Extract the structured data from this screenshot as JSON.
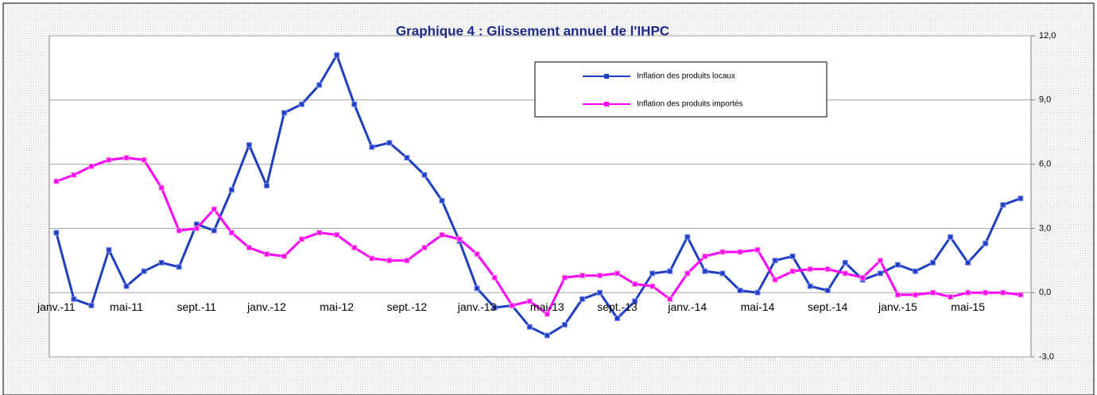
{
  "chart_data": {
    "type": "line",
    "title": "Graphique 4 : Glissement  annuel de l'IHPC",
    "categories": [
      "janv.-11",
      null,
      null,
      null,
      "mai-11",
      null,
      null,
      null,
      "sept.-11",
      null,
      null,
      null,
      "janv.-12",
      null,
      null,
      null,
      "mai-12",
      null,
      null,
      null,
      "sept.-12",
      null,
      null,
      null,
      "janv.-13",
      null,
      null,
      null,
      "mai-13",
      null,
      null,
      null,
      "sept.-13",
      null,
      null,
      null,
      "janv.-14",
      null,
      null,
      null,
      "mai-14",
      null,
      null,
      null,
      "sept.-14",
      null,
      null,
      null,
      "janv.-15",
      null,
      null,
      null,
      "mai-15",
      null,
      null,
      null
    ],
    "series": [
      {
        "name": "Inflation des produits locaux",
        "color": "#1f3fc0",
        "values": [
          2.8,
          -0.3,
          -0.6,
          2.0,
          0.3,
          1.0,
          1.4,
          1.2,
          3.2,
          2.9,
          4.8,
          6.9,
          5.0,
          8.4,
          8.8,
          9.7,
          11.1,
          8.8,
          6.8,
          7.0,
          6.3,
          5.5,
          4.3,
          2.4,
          0.2,
          -0.7,
          -0.6,
          -1.6,
          -2.0,
          -1.5,
          -0.3,
          0.0,
          -1.2,
          -0.4,
          0.9,
          1.0,
          2.6,
          1.0,
          0.9,
          0.1,
          0.0,
          1.5,
          1.7,
          0.3,
          0.1,
          1.4,
          0.6,
          0.9,
          1.3,
          1.0,
          1.4,
          2.6,
          1.4,
          2.3,
          4.1,
          4.4
        ]
      },
      {
        "name": "Inflation des produits importés",
        "color": "#ff00ff",
        "values": [
          5.2,
          5.5,
          5.9,
          6.2,
          6.3,
          6.2,
          4.9,
          2.9,
          3.0,
          3.9,
          2.8,
          2.1,
          1.8,
          1.7,
          2.5,
          2.8,
          2.7,
          2.1,
          1.6,
          1.5,
          1.5,
          2.1,
          2.7,
          2.5,
          1.8,
          0.7,
          -0.6,
          -0.4,
          -1.0,
          0.7,
          0.8,
          0.8,
          0.9,
          0.4,
          0.3,
          -0.3,
          0.9,
          1.7,
          1.9,
          1.9,
          2.0,
          0.6,
          1.0,
          1.1,
          1.1,
          0.9,
          0.7,
          1.5,
          -0.1,
          -0.1,
          0.0,
          -0.2,
          0.0,
          0.0,
          0.0,
          -0.1
        ]
      }
    ],
    "ylim": [
      -3,
      12
    ],
    "yticks": [
      {
        "value": -3,
        "label": "-3,0"
      },
      {
        "value": 0,
        "label": "0,0"
      },
      {
        "value": 3,
        "label": "3,0"
      },
      {
        "value": 6,
        "label": "6,0"
      },
      {
        "value": 9,
        "label": "9,0"
      },
      {
        "value": 12,
        "label": "12,0"
      }
    ],
    "grid": true
  }
}
